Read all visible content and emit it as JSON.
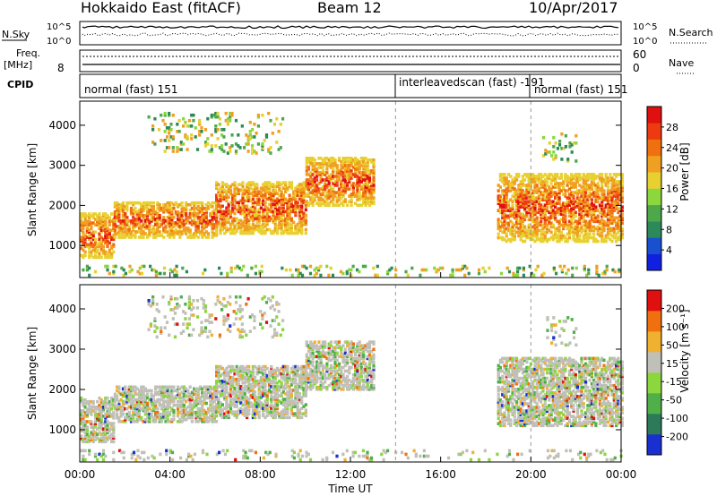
{
  "header": {
    "radar": "Hokkaido East (fitACF)",
    "beam": "Beam 12",
    "date": "10/Apr/2017"
  },
  "nsky_panel": {
    "label": "N.Sky",
    "right_label": "N.Search",
    "left_ticks": [
      "10^5",
      "10^0"
    ],
    "right_ticks": [
      "10^5",
      "10^0"
    ]
  },
  "freq_panel": {
    "label_top": "Freq.",
    "label_unit": "[MHz]",
    "left_tick": "8",
    "right_ticks": [
      "60",
      "0"
    ],
    "right_label": "Nave"
  },
  "cpid_panel": {
    "label": "CPID",
    "segments": [
      {
        "text": "normal (fast) 151"
      },
      {
        "text": "interleavedscan (fast) -191"
      },
      {
        "text": "normal (fast) 151"
      }
    ]
  },
  "chart_data": [
    {
      "type": "heatmap",
      "name": "power",
      "ylabel": "Slant Range [km]",
      "yticks": [
        "1000",
        "2000",
        "3000",
        "4000"
      ],
      "ylim": [
        200,
        4600
      ],
      "xlim": [
        0,
        24
      ],
      "colorbar_label": "Power [dB]",
      "colorbar_ticks": [
        "4",
        "8",
        "12",
        "16",
        "20",
        "24",
        "28"
      ],
      "colorbar_colors": [
        "#1020e0",
        "#1a4fd0",
        "#2c8a5a",
        "#4ea84a",
        "#8cd63e",
        "#e8d030",
        "#f0a020",
        "#f07010",
        "#ee3a10",
        "#e01010"
      ],
      "echo_regions": [
        {
          "t0": 0.0,
          "t1": 1.5,
          "r0": 700,
          "r1": 1800,
          "level": "high"
        },
        {
          "t0": 1.5,
          "t1": 6.0,
          "r0": 1200,
          "r1": 2100,
          "level": "high"
        },
        {
          "t0": 6.0,
          "t1": 10.0,
          "r0": 1300,
          "r1": 2600,
          "level": "high"
        },
        {
          "t0": 10.0,
          "t1": 13.0,
          "r0": 2000,
          "r1": 3200,
          "level": "high"
        },
        {
          "t0": 3.0,
          "t1": 9.0,
          "r0": 3300,
          "r1": 4300,
          "level": "sparse"
        },
        {
          "t0": 18.5,
          "t1": 24.0,
          "r0": 1100,
          "r1": 2800,
          "level": "high"
        },
        {
          "t0": 20.5,
          "t1": 22.0,
          "r0": 3100,
          "r1": 3800,
          "level": "sparse"
        },
        {
          "t0": 0.0,
          "t1": 24.0,
          "r0": 250,
          "r1": 500,
          "level": "sparse"
        }
      ]
    },
    {
      "type": "heatmap",
      "name": "velocity",
      "ylabel": "Slant Range [km]",
      "yticks": [
        "1000",
        "2000",
        "3000",
        "4000"
      ],
      "ylim": [
        200,
        4600
      ],
      "xlim": [
        0,
        24
      ],
      "xticks": [
        "00:00",
        "04:00",
        "08:00",
        "12:00",
        "16:00",
        "20:00",
        "00:00"
      ],
      "xlabel": "Time UT",
      "colorbar_label": "Velocity [m s⁻¹]",
      "colorbar_ticks": [
        "200",
        "100",
        "50",
        "15",
        "-15",
        "-50",
        "-100",
        "-200"
      ],
      "colorbar_colors": [
        "#1a2fd0",
        "#2c7a5a",
        "#4fb04a",
        "#8cd63e",
        "#c0c0b8",
        "#f0b030",
        "#f07010",
        "#e01010"
      ],
      "echo_regions": [
        {
          "t0": 0.0,
          "t1": 1.5,
          "r0": 700,
          "r1": 1800,
          "level": "high"
        },
        {
          "t0": 1.5,
          "t1": 6.0,
          "r0": 1200,
          "r1": 2100,
          "level": "high"
        },
        {
          "t0": 6.0,
          "t1": 10.0,
          "r0": 1300,
          "r1": 2600,
          "level": "high"
        },
        {
          "t0": 10.0,
          "t1": 13.0,
          "r0": 2000,
          "r1": 3200,
          "level": "high"
        },
        {
          "t0": 3.0,
          "t1": 9.0,
          "r0": 3300,
          "r1": 4300,
          "level": "sparse"
        },
        {
          "t0": 18.5,
          "t1": 24.0,
          "r0": 1100,
          "r1": 2800,
          "level": "high"
        },
        {
          "t0": 20.5,
          "t1": 22.0,
          "r0": 3100,
          "r1": 3800,
          "level": "sparse"
        },
        {
          "t0": 0.0,
          "t1": 24.0,
          "r0": 250,
          "r1": 500,
          "level": "sparse"
        }
      ]
    }
  ]
}
